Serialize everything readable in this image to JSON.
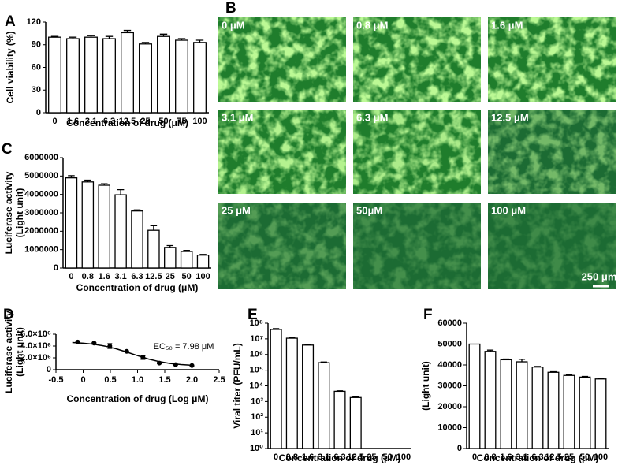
{
  "chart_data": [
    {
      "type": "bar",
      "panel_label": "A",
      "ylabel": [
        "Cell viability (%)"
      ],
      "xlabel": "Concentration of drug (μM)",
      "categories": [
        "0",
        "1.6",
        "3.1",
        "6.3",
        "12.5",
        "25",
        "50",
        "75",
        "100"
      ],
      "values": [
        100,
        98,
        100,
        98,
        106,
        91,
        101,
        96,
        93
      ],
      "errors": [
        1,
        2,
        2,
        3,
        3,
        2,
        3,
        2,
        3
      ],
      "color": "#ffffff",
      "ylim": [
        0,
        120
      ],
      "yticks": [
        0,
        30,
        60,
        90,
        120
      ]
    },
    {
      "type": "bar",
      "panel_label": "C",
      "ylabel": [
        "Luciferase activity",
        "(Light unit)"
      ],
      "xlabel": "Concentration of drug (μM)",
      "categories": [
        "0",
        "0.8",
        "1.6",
        "3.1",
        "6.3",
        "12.5",
        "25",
        "50",
        "100"
      ],
      "values": [
        4900000,
        4680000,
        4500000,
        3980000,
        3100000,
        2050000,
        1120000,
        900000,
        700000
      ],
      "errors": [
        120000,
        100000,
        80000,
        280000,
        60000,
        250000,
        100000,
        60000,
        40000
      ],
      "color": "#ffffff",
      "ylim": [
        0,
        6000000
      ],
      "yticks": [
        0,
        1000000,
        2000000,
        3000000,
        4000000,
        5000000,
        6000000
      ]
    },
    {
      "type": "scatter",
      "panel_label": "D",
      "ylabel": [
        "Luciferase activity",
        "(Light unit)"
      ],
      "xlabel": "Concentration of drug (Log μM)",
      "annotation": "EC₅₀ = 7.98 μM",
      "x": [
        -0.1,
        0.2,
        0.49,
        0.8,
        1.1,
        1.4,
        1.7,
        2.0
      ],
      "values": [
        4680000,
        4500000,
        4000000,
        3100000,
        2050000,
        1120000,
        850000,
        700000
      ],
      "errors": [
        120000,
        60000,
        400000,
        60000,
        300000,
        100000,
        50000,
        40000
      ],
      "fit": {
        "x": [
          -0.2,
          0,
          0.2,
          0.4,
          0.6,
          0.8,
          1.0,
          1.2,
          1.4,
          1.6,
          1.8,
          2.0
        ],
        "values": [
          4600000,
          4490000,
          4300000,
          3990000,
          3550000,
          2980000,
          2370000,
          1800000,
          1360000,
          1050000,
          860000,
          750000
        ]
      },
      "color": "#000000",
      "xlim": [
        -0.5,
        2.5
      ],
      "xticks": [
        -0.5,
        0,
        0.5,
        {
          "value": 1,
          "label": "1.0"
        },
        1.5,
        {
          "value": 2,
          "label": "2.0"
        },
        2.5
      ],
      "ylim": [
        0,
        6000000
      ],
      "yticks": [
        0,
        {
          "value": 2000000,
          "label": "2.0×10⁶"
        },
        {
          "value": 4000000,
          "label": "4.0×10⁶"
        },
        {
          "value": 6000000,
          "label": "6.0×10⁶"
        }
      ]
    },
    {
      "type": "bar",
      "panel_label": "E",
      "ylabel": [
        "Viral titer (PFU/mL)"
      ],
      "xlabel": "Concentration of drug (μM)",
      "categories": [
        "0",
        "0.8",
        "1.6",
        "3.1",
        "6.3",
        "12.5",
        "25",
        "50",
        "100"
      ],
      "values": [
        40000000,
        11000000,
        4000000,
        300000,
        4500,
        1800,
        null,
        null,
        null
      ],
      "errors": [
        5000000,
        500000,
        300000,
        30000,
        300,
        150,
        null,
        null,
        null
      ],
      "color": "#ffffff",
      "log": true,
      "ylim": [
        1,
        100000000
      ],
      "yticks": [
        {
          "value": 1,
          "label": "10⁰"
        },
        {
          "value": 10,
          "label": "10¹"
        },
        {
          "value": 100,
          "label": "10²"
        },
        {
          "value": 1000,
          "label": "10³"
        },
        {
          "value": 10000,
          "label": "10⁴"
        },
        {
          "value": 100000,
          "label": "10⁵"
        },
        {
          "value": 1000000,
          "label": "10⁶"
        },
        {
          "value": 10000000,
          "label": "10⁷"
        },
        {
          "value": 100000000,
          "label": "10⁸"
        }
      ]
    },
    {
      "type": "bar",
      "panel_label": "F",
      "ylabel": [
        "(Light unit)"
      ],
      "xlabel": "Concentration of drug (μM)",
      "categories": [
        "0",
        "0.8",
        "1.6",
        "3.1",
        "6.3",
        "12.5",
        "25",
        "50",
        "100"
      ],
      "values": [
        50000,
        46500,
        42500,
        41500,
        39000,
        36500,
        35000,
        34200,
        33300
      ],
      "errors": [
        0,
        600,
        300,
        1200,
        300,
        300,
        300,
        300,
        300
      ],
      "color": "#ffffff",
      "ylim": [
        0,
        60000
      ],
      "yticks": [
        0,
        10000,
        20000,
        30000,
        40000,
        50000,
        60000
      ]
    }
  ],
  "micrographs": {
    "panel_label": "B",
    "labels": [
      "0 μM",
      "0.8 μM",
      "1.6 μM",
      "3.1 μM",
      "6.3 μM",
      "12.5 μM",
      "25 μM",
      "50μM",
      "100 μM"
    ],
    "scale_bar": "250 μm"
  }
}
